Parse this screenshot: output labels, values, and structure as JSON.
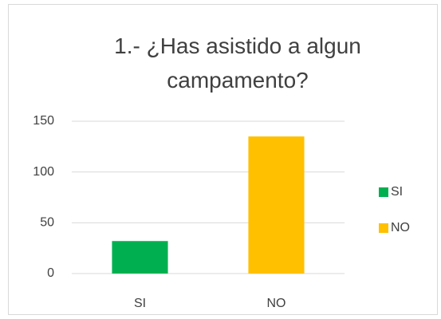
{
  "chart_data": {
    "type": "bar",
    "title": "1.- ¿Has asistido a algun campamento?",
    "categories": [
      "SI",
      "NO"
    ],
    "values": [
      32,
      135
    ],
    "colors": [
      "#00b050",
      "#ffc000"
    ],
    "ylim": [
      0,
      150
    ],
    "yticks": [
      0,
      50,
      100,
      150
    ],
    "grid": true,
    "legend": "right"
  }
}
